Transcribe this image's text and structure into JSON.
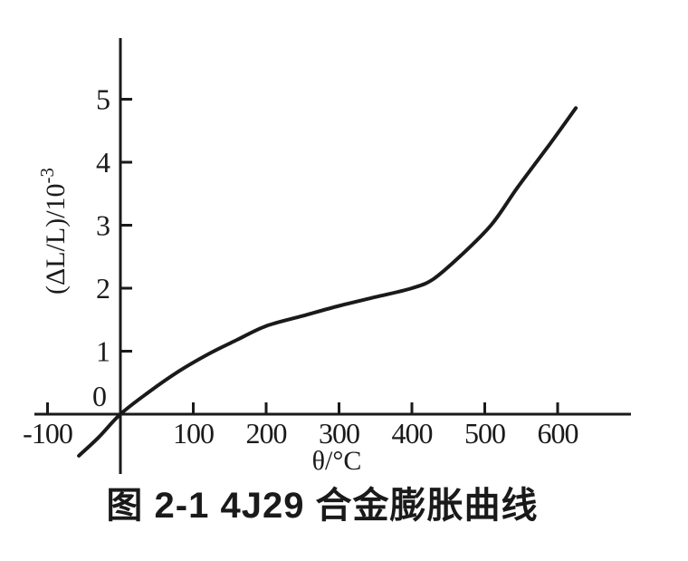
{
  "figure": {
    "caption": "图 2-1 4J29 合金膨胀曲线"
  },
  "chart_data": {
    "type": "line",
    "title": "图 2-1 4J29 合金膨胀曲线",
    "xlabel": "θ/°C",
    "ylabel": "(ΔL/L)/10⁻³",
    "ylabel_base": "(ΔL/L)/10",
    "ylabel_exponent": "-3",
    "origin_label": "0",
    "grid": false,
    "legend": null,
    "xlim": [
      -118,
      700
    ],
    "ylim": [
      -0.95,
      5.95
    ],
    "x_ticks": [
      {
        "v": -100,
        "label": "-100"
      },
      {
        "v": 100,
        "label": "100"
      },
      {
        "v": 200,
        "label": "200"
      },
      {
        "v": 300,
        "label": "300"
      },
      {
        "v": 400,
        "label": "400"
      },
      {
        "v": 500,
        "label": "500"
      },
      {
        "v": 600,
        "label": "600"
      }
    ],
    "y_ticks": [
      {
        "v": 5,
        "label": "5"
      },
      {
        "v": 4,
        "label": "4"
      },
      {
        "v": 3,
        "label": "3"
      },
      {
        "v": 2,
        "label": "2"
      },
      {
        "v": 1,
        "label": "1"
      }
    ],
    "series": [
      {
        "name": "4J29",
        "points": [
          [
            -57,
            -0.66
          ],
          [
            -30,
            -0.37
          ],
          [
            0,
            0
          ],
          [
            40,
            0.36
          ],
          [
            80,
            0.68
          ],
          [
            120,
            0.95
          ],
          [
            160,
            1.18
          ],
          [
            200,
            1.4
          ],
          [
            250,
            1.56
          ],
          [
            300,
            1.72
          ],
          [
            350,
            1.86
          ],
          [
            400,
            2.0
          ],
          [
            430,
            2.15
          ],
          [
            470,
            2.55
          ],
          [
            510,
            3.02
          ],
          [
            545,
            3.6
          ],
          [
            590,
            4.3
          ],
          [
            625,
            4.86
          ]
        ]
      }
    ]
  },
  "colors": {
    "ink": "#1a1a1a",
    "background": "#ffffff"
  }
}
